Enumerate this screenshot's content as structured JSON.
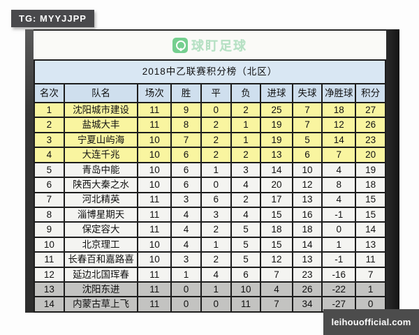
{
  "badges": {
    "tg": "TG: MYYJJPP",
    "watermark": "leihouofficial.com"
  },
  "logo": {
    "name": "球盯足球",
    "icon": "camera-pin-icon",
    "icon_color": "#5ec87d",
    "text_color": "#aadcba"
  },
  "table": {
    "title": "2018中乙联赛积分榜（北区）",
    "columns": [
      "名次",
      "队名",
      "场次",
      "胜",
      "平",
      "负",
      "进球",
      "失球",
      "净胜球",
      "积分"
    ],
    "column_widths_pct": [
      8.5,
      21,
      9.5,
      8.5,
      8.5,
      8.5,
      9,
      8.5,
      9.5,
      8.5
    ],
    "rows": [
      {
        "rank": "1",
        "team": "沈阳城市建设",
        "played": "11",
        "win": "9",
        "draw": "0",
        "loss": "2",
        "gf": "25",
        "ga": "7",
        "gd": "18",
        "pts": "27",
        "tier": "promotion"
      },
      {
        "rank": "2",
        "team": "盐城大丰",
        "played": "11",
        "win": "8",
        "draw": "2",
        "loss": "1",
        "gf": "19",
        "ga": "7",
        "gd": "12",
        "pts": "26",
        "tier": "promotion"
      },
      {
        "rank": "3",
        "team": "宁夏山屿海",
        "played": "10",
        "win": "7",
        "draw": "2",
        "loss": "1",
        "gf": "19",
        "ga": "5",
        "gd": "14",
        "pts": "23",
        "tier": "promotion"
      },
      {
        "rank": "4",
        "team": "大连千兆",
        "played": "10",
        "win": "6",
        "draw": "2",
        "loss": "2",
        "gf": "13",
        "ga": "6",
        "gd": "7",
        "pts": "20",
        "tier": "promotion"
      },
      {
        "rank": "5",
        "team": "青岛中能",
        "played": "10",
        "win": "6",
        "draw": "1",
        "loss": "3",
        "gf": "14",
        "ga": "10",
        "gd": "4",
        "pts": "19",
        "tier": "normal"
      },
      {
        "rank": "6",
        "team": "陕西大秦之水",
        "played": "10",
        "win": "6",
        "draw": "0",
        "loss": "4",
        "gf": "20",
        "ga": "12",
        "gd": "8",
        "pts": "18",
        "tier": "normal"
      },
      {
        "rank": "7",
        "team": "河北精英",
        "played": "11",
        "win": "3",
        "draw": "6",
        "loss": "2",
        "gf": "17",
        "ga": "13",
        "gd": "4",
        "pts": "15",
        "tier": "normal"
      },
      {
        "rank": "8",
        "team": "淄博星期天",
        "played": "11",
        "win": "4",
        "draw": "3",
        "loss": "4",
        "gf": "15",
        "ga": "16",
        "gd": "-1",
        "pts": "15",
        "tier": "normal"
      },
      {
        "rank": "9",
        "team": "保定容大",
        "played": "11",
        "win": "4",
        "draw": "2",
        "loss": "5",
        "gf": "18",
        "ga": "18",
        "gd": "0",
        "pts": "14",
        "tier": "normal"
      },
      {
        "rank": "10",
        "team": "北京理工",
        "played": "10",
        "win": "4",
        "draw": "1",
        "loss": "5",
        "gf": "15",
        "ga": "14",
        "gd": "1",
        "pts": "13",
        "tier": "normal"
      },
      {
        "rank": "11",
        "team": "长春百和嘉路喜",
        "played": "10",
        "win": "3",
        "draw": "2",
        "loss": "5",
        "gf": "12",
        "ga": "13",
        "gd": "-1",
        "pts": "11",
        "tier": "normal"
      },
      {
        "rank": "12",
        "team": "延边北国珲春",
        "played": "11",
        "win": "1",
        "draw": "4",
        "loss": "6",
        "gf": "7",
        "ga": "23",
        "gd": "-16",
        "pts": "7",
        "tier": "normal"
      },
      {
        "rank": "13",
        "team": "沈阳东进",
        "played": "11",
        "win": "0",
        "draw": "1",
        "loss": "10",
        "gf": "4",
        "ga": "26",
        "gd": "-22",
        "pts": "1",
        "tier": "relegation"
      },
      {
        "rank": "14",
        "team": "内蒙古草上飞",
        "played": "11",
        "win": "0",
        "draw": "0",
        "loss": "11",
        "gf": "7",
        "ga": "34",
        "gd": "-27",
        "pts": "0",
        "tier": "relegation"
      }
    ],
    "tier_colors": {
      "promotion": "#f9f5a0",
      "normal": "#f4f4f1",
      "relegation": "#c3c3c1"
    },
    "header_color": "#cfdfee",
    "title_color": "#d9e7f3",
    "border_color": "#1d1d1d"
  }
}
